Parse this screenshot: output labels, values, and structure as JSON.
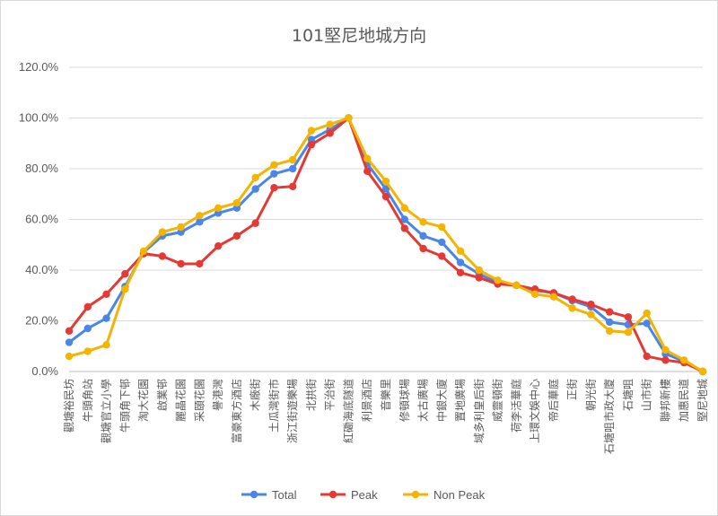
{
  "chart_data": {
    "type": "line",
    "title": "101堅尼地城方向",
    "xlabel": "",
    "ylabel": "",
    "ylim": [
      0,
      120
    ],
    "y_ticks": [
      "0.0%",
      "20.0%",
      "40.0%",
      "60.0%",
      "80.0%",
      "100.0%",
      "120.0%"
    ],
    "grid": true,
    "legend_position": "bottom",
    "categories": [
      "觀塘裕民坊",
      "牛頭角站",
      "觀塘官立小學",
      "牛頭角下邨",
      "淘大花園",
      "啟業邨",
      "麗晶花園",
      "采頤花園",
      "譽港灣",
      "富豪東方酒店",
      "木廠街",
      "土瓜灣街市",
      "浙江街遊樂場",
      "北拱街",
      "平治街",
      "紅磡海底隧道",
      "利景酒店",
      "音樂里",
      "修頓球場",
      "太古廣場",
      "中銀大廈",
      "置地廣場",
      "域多利皇后街",
      "威靈頓街",
      "荷李活華庭",
      "上環文娛中心",
      "帝后華庭",
      "正街",
      "朝光街",
      "石塘咀市政大廈",
      "石塘咀",
      "山市街",
      "聯邦新樓",
      "加惠民道",
      "堅尼地城"
    ],
    "series": [
      {
        "name": "Total",
        "color": "#4a86e8",
        "values": [
          11.5,
          17,
          21,
          33.5,
          47,
          53.5,
          55,
          59,
          62.5,
          64.5,
          72,
          78,
          80,
          91.5,
          95.5,
          100,
          82,
          72,
          60,
          53.5,
          51,
          43,
          38.5,
          35,
          34,
          32,
          31,
          28,
          25.5,
          19.5,
          18.5,
          19,
          7,
          4,
          0
        ]
      },
      {
        "name": "Peak",
        "color": "#e53935",
        "values": [
          16,
          25.5,
          30.5,
          38.5,
          46.5,
          45.5,
          42.5,
          42.5,
          49.5,
          53.5,
          58.5,
          72.5,
          73,
          89.5,
          94,
          100,
          79,
          69,
          56.5,
          48.5,
          45.5,
          39,
          37,
          34.5,
          34,
          32.5,
          31,
          28.5,
          26.5,
          23.5,
          21.5,
          6,
          4.5,
          3.5,
          0
        ]
      },
      {
        "name": "Non Peak",
        "color": "#f4b400",
        "values": [
          6,
          8,
          10.5,
          32.5,
          47.5,
          55,
          57,
          61.5,
          64.5,
          66.5,
          76.5,
          81.5,
          83.5,
          95,
          97.5,
          100,
          84,
          75,
          64.5,
          59,
          57,
          47.5,
          40,
          36,
          34,
          30.5,
          29.5,
          25,
          22.5,
          16,
          15.5,
          23,
          8.5,
          4.5,
          0
        ]
      }
    ]
  }
}
